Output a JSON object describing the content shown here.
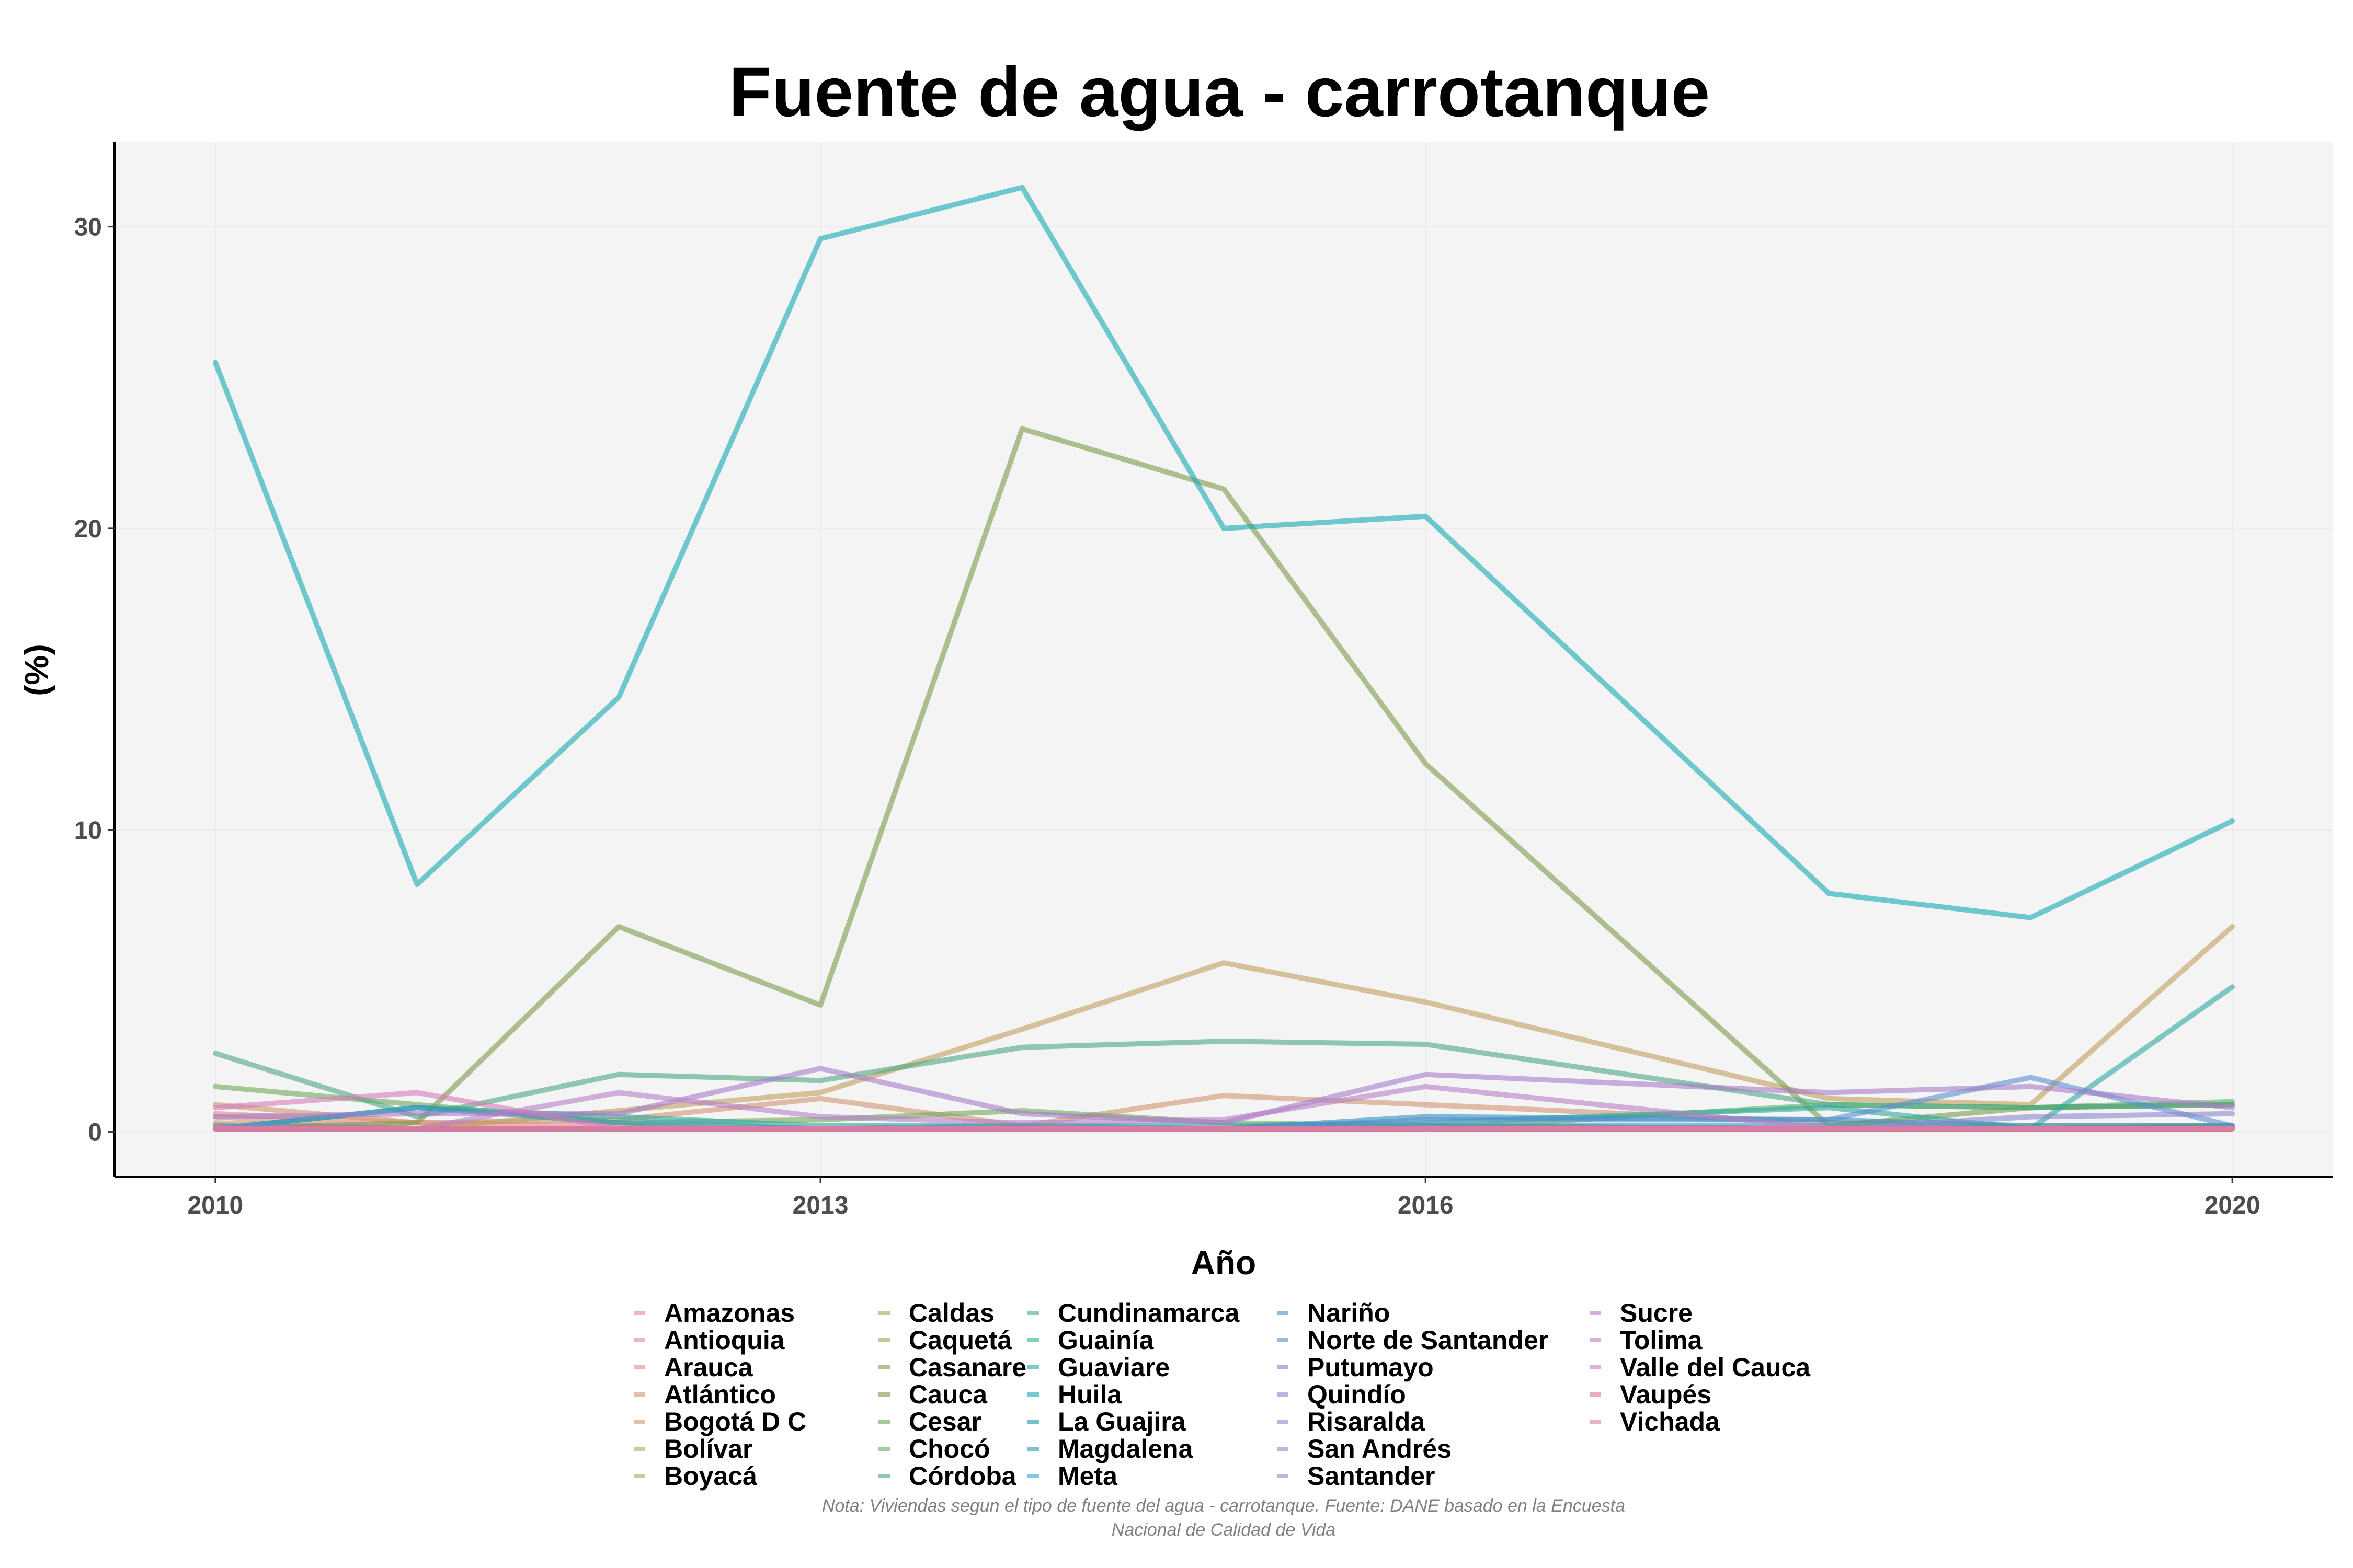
{
  "chart_data": {
    "type": "line",
    "title": "Fuente de agua - carrotanque",
    "xlabel": "Año",
    "ylabel": "(%)",
    "x": [
      2010,
      2011,
      2012,
      2013,
      2014,
      2015,
      2016,
      2018,
      2019,
      2020
    ],
    "x_ticks": [
      2010,
      2013,
      2016,
      2020
    ],
    "y_ticks": [
      0,
      10,
      20,
      30
    ],
    "xlim": [
      2009.5,
      2020.5
    ],
    "ylim": [
      -1.5,
      32.8
    ],
    "grid": true,
    "legend_position": "bottom",
    "series": [
      {
        "name": "Amazonas",
        "color": "#e6849b",
        "values": [
          0.2,
          0.1,
          0.1,
          0.1,
          0.1,
          0.1,
          0.2,
          0.1,
          0.1,
          0.1
        ]
      },
      {
        "name": "Antioquia",
        "color": "#e2878b",
        "values": [
          0.6,
          0.3,
          0.2,
          0.1,
          0.1,
          0.1,
          0.1,
          0.1,
          0.1,
          0.1
        ]
      },
      {
        "name": "Arauca",
        "color": "#d98f82",
        "values": [
          0.5,
          0.1,
          0.1,
          0.1,
          0.1,
          0.1,
          0.1,
          0.1,
          0.1,
          0.2
        ]
      },
      {
        "name": "Atlántico",
        "color": "#d19470",
        "values": [
          0.9,
          0.3,
          0.4,
          1.1,
          0.2,
          1.2,
          0.9,
          0.3,
          0.2,
          0.2
        ]
      },
      {
        "name": "Bogotá D C",
        "color": "#c69c6d",
        "values": [
          0.1,
          0.1,
          0.1,
          0.1,
          0.1,
          0.1,
          0.1,
          0.1,
          0.1,
          0.1
        ]
      },
      {
        "name": "Bolívar",
        "color": "#bf9d5e",
        "values": [
          0.3,
          0.1,
          0.7,
          1.3,
          3.4,
          5.6,
          4.3,
          1.1,
          0.9,
          6.8
        ]
      },
      {
        "name": "Boyacá",
        "color": "#b5a25c",
        "values": [
          0.1,
          0.1,
          0.1,
          0.1,
          0.1,
          0.1,
          0.1,
          0.1,
          0.1,
          0.1
        ]
      },
      {
        "name": "Caldas",
        "color": "#a6a651",
        "values": [
          0.1,
          0.1,
          0.1,
          0.1,
          0.1,
          0.1,
          0.1,
          0.1,
          0.1,
          0.1
        ]
      },
      {
        "name": "Caquetá",
        "color": "#99a95a",
        "values": [
          0.2,
          0.1,
          0.1,
          0.1,
          0.1,
          0.1,
          0.1,
          0.1,
          0.1,
          0.1
        ]
      },
      {
        "name": "Casanare",
        "color": "#889a4c",
        "values": [
          0.1,
          0.1,
          0.1,
          0.1,
          0.1,
          0.1,
          0.1,
          0.1,
          0.1,
          0.1
        ]
      },
      {
        "name": "Cauca",
        "color": "#7c9a4a",
        "values": [
          0.1,
          0.3,
          6.8,
          4.2,
          23.3,
          21.3,
          12.2,
          0.2,
          0.8,
          0.9
        ]
      },
      {
        "name": "Cesar",
        "color": "#6fa85a",
        "values": [
          1.5,
          0.9,
          0.3,
          0.4,
          0.7,
          0.3,
          0.2,
          0.1,
          0.1,
          0.2
        ]
      },
      {
        "name": "Chocó",
        "color": "#5bb266",
        "values": [
          0.1,
          0.1,
          0.1,
          0.1,
          0.1,
          0.1,
          0.1,
          0.9,
          0.8,
          1.0
        ]
      },
      {
        "name": "Córdoba",
        "color": "#4da680",
        "values": [
          2.6,
          0.5,
          1.9,
          1.7,
          2.8,
          3.0,
          2.9,
          0.9,
          0.8,
          0.9
        ]
      },
      {
        "name": "Cundinamarca",
        "color": "#47ad8c",
        "values": [
          0.1,
          0.1,
          0.1,
          0.1,
          0.1,
          0.1,
          0.1,
          0.1,
          0.1,
          0.1
        ]
      },
      {
        "name": "Guainía",
        "color": "#34ab93",
        "values": [
          0.1,
          0.1,
          0.1,
          0.1,
          0.1,
          0.1,
          0.1,
          0.1,
          0.1,
          0.1
        ]
      },
      {
        "name": "Guaviare",
        "color": "#2ba8a0",
        "values": [
          0.1,
          0.8,
          0.5,
          0.2,
          0.2,
          0.2,
          0.3,
          0.8,
          0.1,
          4.8
        ]
      },
      {
        "name": "Huila",
        "color": "#14a9b0",
        "values": [
          25.5,
          8.2,
          14.4,
          29.6,
          31.3,
          20.0,
          20.4,
          7.9,
          7.1,
          10.3
        ]
      },
      {
        "name": "La Guajira",
        "color": "#1b9bb0",
        "values": [
          0.1,
          0.1,
          0.1,
          0.1,
          0.1,
          0.1,
          0.1,
          0.1,
          0.1,
          0.1
        ]
      },
      {
        "name": "Magdalena",
        "color": "#2d94c0",
        "values": [
          0.1,
          0.8,
          0.3,
          0.1,
          0.2,
          0.1,
          0.5,
          0.4,
          0.2,
          0.2
        ]
      },
      {
        "name": "Meta",
        "color": "#3d9ccc",
        "values": [
          0.1,
          0.1,
          0.1,
          0.1,
          0.1,
          0.1,
          0.1,
          0.1,
          0.1,
          0.1
        ]
      },
      {
        "name": "Nariño",
        "color": "#4696cc",
        "values": [
          0.1,
          0.1,
          0.1,
          0.1,
          0.1,
          0.1,
          0.2,
          0.2,
          0.1,
          0.1
        ]
      },
      {
        "name": "Norte de Santander",
        "color": "#5a8fd0",
        "values": [
          0.1,
          0.1,
          0.1,
          0.1,
          0.1,
          0.1,
          0.4,
          0.4,
          1.8,
          0.2
        ]
      },
      {
        "name": "Putumayo",
        "color": "#7788d4",
        "values": [
          0.1,
          0.1,
          0.1,
          0.1,
          0.1,
          0.1,
          0.1,
          0.1,
          0.1,
          0.1
        ]
      },
      {
        "name": "Quindío",
        "color": "#8a86cf",
        "values": [
          0.2,
          0.1,
          0.1,
          0.1,
          0.1,
          0.1,
          0.1,
          0.1,
          0.5,
          0.6
        ]
      },
      {
        "name": "Risaralda",
        "color": "#9c82d0",
        "values": [
          0.1,
          0.1,
          0.1,
          0.1,
          0.1,
          0.1,
          0.1,
          0.1,
          0.1,
          0.1
        ]
      },
      {
        "name": "San Andrés",
        "color": "#9a87b8",
        "values": [
          0.1,
          0.1,
          0.1,
          0.1,
          0.1,
          0.1,
          0.1,
          0.1,
          0.1,
          0.1
        ]
      },
      {
        "name": "Santander",
        "color": "#a57cc8",
        "values": [
          0.5,
          0.6,
          0.6,
          2.1,
          0.6,
          0.3,
          1.9,
          1.3,
          1.5,
          0.8
        ]
      },
      {
        "name": "Sucre",
        "color": "#b67ec6",
        "values": [
          0.1,
          0.1,
          1.3,
          0.5,
          0.3,
          0.4,
          1.5,
          0.1,
          0.1,
          0.1
        ]
      },
      {
        "name": "Tolima",
        "color": "#c77fc0",
        "values": [
          0.1,
          0.1,
          0.1,
          0.1,
          0.1,
          0.1,
          0.1,
          0.1,
          0.1,
          0.1
        ]
      },
      {
        "name": "Valle del Cauca",
        "color": "#d47cbb",
        "values": [
          0.8,
          1.3,
          0.1,
          0.1,
          0.1,
          0.1,
          0.1,
          0.1,
          0.1,
          0.1
        ]
      },
      {
        "name": "Vaupés",
        "color": "#d97aa5",
        "values": [
          0.1,
          0.1,
          0.1,
          0.1,
          0.1,
          0.1,
          0.1,
          0.1,
          0.1,
          0.1
        ]
      },
      {
        "name": "Vichada",
        "color": "#e07c95",
        "values": [
          0.1,
          0.1,
          0.1,
          0.1,
          0.1,
          0.1,
          0.1,
          0.1,
          0.1,
          0.1
        ]
      }
    ],
    "caption_lines": [
      "Nota: Viviendas segun el tipo de fuente del agua - carrotanque. Fuente: DANE basado en la Encuesta",
      "Nacional de Calidad de Vida"
    ]
  }
}
